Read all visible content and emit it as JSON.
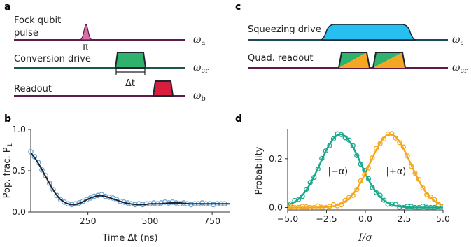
{
  "panels": {
    "a": {
      "label": "a",
      "lines": [
        {
          "label_lines": [
            "Fock qubit",
            "pulse"
          ],
          "freq": "ω",
          "freq_sub": "a",
          "color": "#5b1c4a"
        },
        {
          "label_lines": [
            "Conversion drive"
          ],
          "freq": "ω",
          "freq_sub": "cr",
          "color": "#1e5a40"
        },
        {
          "label_lines": [
            "Readout"
          ],
          "freq": "ω",
          "freq_sub": "b",
          "color": "#5b1c4a"
        }
      ],
      "pi_label": "π",
      "delta_t_label": "Δt",
      "colors": {
        "pi_pulse": "#d96fa6",
        "conversion": "#2fb36c",
        "readout": "#d81e3c"
      }
    },
    "b": {
      "label": "b",
      "chart_data": {
        "type": "line",
        "xlabel": "Time Δt (ns)",
        "ylabel": "Pop. frac. P",
        "ylabel_sub": "1",
        "xlim": [
          20,
          820
        ],
        "ylim": [
          0,
          1
        ],
        "xticks": [
          250,
          500,
          750
        ],
        "yticks": [
          0.0,
          0.5,
          1.0
        ],
        "ytick_labels": [
          "0.0",
          "0.5",
          "1.0"
        ],
        "fit": {
          "x": [
            20,
            40,
            60,
            80,
            100,
            120,
            140,
            160,
            180,
            200,
            220,
            240,
            260,
            280,
            300,
            320,
            340,
            360,
            380,
            400,
            420,
            440,
            460,
            480,
            500,
            540,
            580,
            620,
            660,
            700,
            740,
            780,
            820
          ],
          "y": [
            0.72,
            0.64,
            0.54,
            0.43,
            0.32,
            0.22,
            0.15,
            0.11,
            0.09,
            0.09,
            0.11,
            0.14,
            0.17,
            0.19,
            0.2,
            0.19,
            0.17,
            0.15,
            0.13,
            0.11,
            0.1,
            0.09,
            0.09,
            0.09,
            0.1,
            0.1,
            0.11,
            0.11,
            0.1,
            0.1,
            0.1,
            0.1,
            0.1
          ]
        },
        "points": {
          "x": [
            20,
            35,
            50,
            65,
            80,
            95,
            110,
            125,
            140,
            155,
            170,
            185,
            200,
            215,
            230,
            245,
            260,
            275,
            290,
            305,
            320,
            335,
            350,
            365,
            380,
            395,
            410,
            425,
            440,
            455,
            470,
            485,
            500,
            515,
            530,
            545,
            560,
            575,
            590,
            605,
            620,
            635,
            650,
            665,
            680,
            695,
            710,
            725,
            740,
            755,
            770,
            785,
            800
          ],
          "y": [
            0.73,
            0.67,
            0.6,
            0.51,
            0.44,
            0.35,
            0.27,
            0.2,
            0.15,
            0.12,
            0.1,
            0.09,
            0.1,
            0.11,
            0.13,
            0.15,
            0.17,
            0.19,
            0.2,
            0.21,
            0.19,
            0.18,
            0.17,
            0.15,
            0.13,
            0.12,
            0.11,
            0.1,
            0.09,
            0.1,
            0.09,
            0.1,
            0.1,
            0.11,
            0.1,
            0.11,
            0.12,
            0.11,
            0.12,
            0.11,
            0.1,
            0.11,
            0.1,
            0.09,
            0.1,
            0.1,
            0.11,
            0.1,
            0.1,
            0.09,
            0.1,
            0.1,
            0.1
          ]
        },
        "colors": {
          "points": "#6aa6d6",
          "fit": "#1e2433"
        }
      }
    },
    "c": {
      "label": "c",
      "lines": [
        {
          "label_lines": [
            "Squeezing drive"
          ],
          "freq": "ω",
          "freq_sub": "s",
          "color": "#1e4a55"
        },
        {
          "label_lines": [
            "Quad. readout"
          ],
          "freq": "ω",
          "freq_sub": "cr",
          "color": "#5b1c4a"
        }
      ],
      "colors": {
        "squeeze": "#27bff0",
        "quad_green": "#2fb36c",
        "quad_orange": "#f5a623"
      }
    },
    "d": {
      "label": "d",
      "chart_data": {
        "type": "line",
        "xlabel": "I/σ",
        "ylabel": "Probability",
        "xlim": [
          -5,
          5
        ],
        "ylim": [
          -0.01,
          0.32
        ],
        "xticks": [
          -5.0,
          -2.5,
          0.0,
          2.5,
          5.0
        ],
        "xtick_labels": [
          "−5.0",
          "−2.5",
          "0.0",
          "2.5",
          "5.0"
        ],
        "yticks": [
          0.0,
          0.2
        ],
        "ytick_labels": [
          "0.0",
          "0.2"
        ],
        "series": [
          {
            "name": "|−α⟩",
            "mean": -1.6,
            "sigma": 1.3,
            "peak": 0.3,
            "color": "#1aa88c"
          },
          {
            "name": "|+α⟩",
            "mean": 1.6,
            "sigma": 1.3,
            "peak": 0.3,
            "color": "#f3a81d"
          }
        ],
        "points_x": [
          -4.8,
          -4.55,
          -4.3,
          -4.05,
          -3.8,
          -3.55,
          -3.3,
          -3.05,
          -2.8,
          -2.55,
          -2.3,
          -2.05,
          -1.8,
          -1.55,
          -1.3,
          -1.05,
          -0.8,
          -0.55,
          -0.3,
          -0.05,
          0.2,
          0.45,
          0.7,
          0.95,
          1.2,
          1.45,
          1.7,
          1.95,
          2.2,
          2.45,
          2.7,
          2.95,
          3.2,
          3.45,
          3.7,
          3.95,
          4.2,
          4.45,
          4.7
        ]
      }
    }
  }
}
